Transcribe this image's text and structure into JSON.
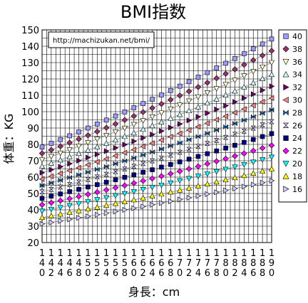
{
  "chart_data": {
    "type": "line",
    "title": "BMI指数",
    "annotation": "http://machizukan.net/bmi/",
    "xlabel": "身長：cm",
    "ylabel": "体重：KG",
    "ylim": [
      20,
      150
    ],
    "ytick_step": 10,
    "xlim": [
      140,
      190
    ],
    "x_tick_labels": [
      "140",
      "142",
      "144",
      "146",
      "148",
      "150",
      "152",
      "154",
      "156",
      "158",
      "160",
      "162",
      "164",
      "166",
      "168",
      "170",
      "172",
      "174",
      "176",
      "178",
      "180",
      "182",
      "184",
      "186",
      "188",
      "190"
    ],
    "grid": true,
    "legend_placement": "right",
    "series": [
      {
        "name": "40",
        "color": "#9999ff",
        "marker": "square",
        "values_at_ends": [
          78.4,
          144.4
        ]
      },
      {
        "name": "38",
        "color": "#993366",
        "marker": "diamond",
        "values_at_ends": [
          74.5,
          137.2
        ]
      },
      {
        "name": "36",
        "color": "#ffffcc",
        "marker": "triangle-down",
        "values_at_ends": [
          70.6,
          130.0
        ]
      },
      {
        "name": "34",
        "color": "#ccffff",
        "marker": "triangle-up",
        "values_at_ends": [
          66.6,
          122.7
        ]
      },
      {
        "name": "32",
        "color": "#660066",
        "marker": "triangle-right",
        "values_at_ends": [
          62.7,
          115.5
        ]
      },
      {
        "name": "30",
        "color": "#ff8080",
        "marker": "triangle-left",
        "values_at_ends": [
          58.8,
          108.3
        ]
      },
      {
        "name": "28",
        "color": "#0066cc",
        "marker": "bowtie",
        "values_at_ends": [
          54.9,
          101.1
        ]
      },
      {
        "name": "26",
        "color": "#ccccff",
        "marker": "hourglass",
        "values_at_ends": [
          51.0,
          93.9
        ]
      },
      {
        "name": "24",
        "color": "#000080",
        "marker": "square",
        "values_at_ends": [
          47.0,
          86.6
        ]
      },
      {
        "name": "22",
        "color": "#ff00ff",
        "marker": "diamond",
        "values_at_ends": [
          43.1,
          79.4
        ]
      },
      {
        "name": "20",
        "color": "#00ffff",
        "marker": "triangle-down",
        "values_at_ends": [
          39.2,
          72.2
        ]
      },
      {
        "name": "18",
        "color": "#ffff00",
        "marker": "triangle-up",
        "values_at_ends": [
          35.3,
          65.0
        ]
      },
      {
        "name": "16",
        "color": "#ccccff",
        "marker": "triangle-right",
        "values_at_ends": [
          31.4,
          57.8
        ]
      }
    ]
  }
}
